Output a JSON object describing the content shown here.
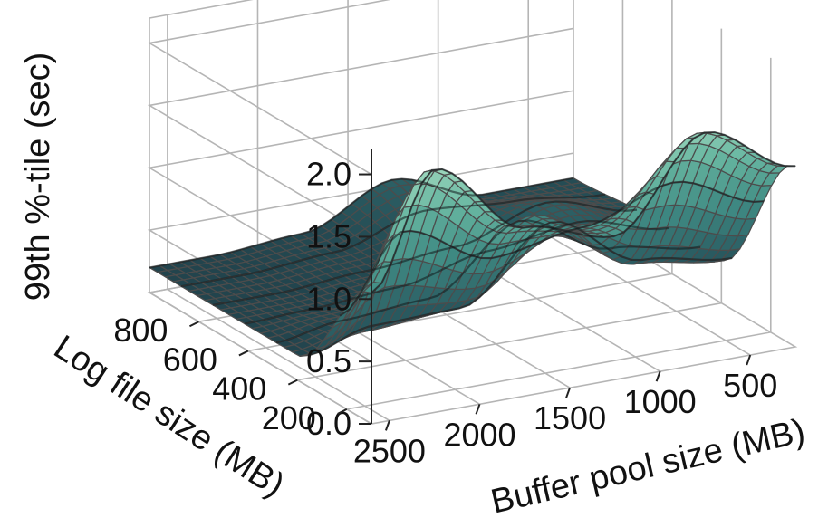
{
  "chart_data": {
    "type": "surface3d",
    "title": "",
    "zlabel": "99th %-tile (sec)",
    "xlabel": "Log file size (MB)",
    "ylabel": "Buffer pool size (MB)",
    "z_ticks": [
      "0.0",
      "0.5",
      "1.0",
      "1.5",
      "2.0"
    ],
    "x_ticks": [
      "200",
      "400",
      "600",
      "800"
    ],
    "y_ticks": [
      "500",
      "1000",
      "1500",
      "2000",
      "2500"
    ],
    "x_range": [
      100,
      1000
    ],
    "y_range": [
      250,
      2600
    ],
    "z_range": [
      0,
      2.2
    ],
    "grid": true,
    "colormap": [
      "#1d3540",
      "#2a5b61",
      "#3f8a83",
      "#66b5a0",
      "#a6ddc2"
    ],
    "surface": {
      "log_file_size_mb": [
        100,
        400,
        700,
        1000
      ],
      "buffer_pool_size_mb": [
        250,
        750,
        1250,
        1750,
        2250,
        2600
      ],
      "p99_sec": [
        [
          1.45,
          1.85,
          1.15,
          1.35,
          1.95,
          1.05
        ],
        [
          0.35,
          0.45,
          0.95,
          0.35,
          0.3,
          0.2
        ],
        [
          0.35,
          0.55,
          0.3,
          0.25,
          0.2,
          0.2
        ],
        [
          0.3,
          0.3,
          0.55,
          0.25,
          0.2,
          0.2
        ]
      ]
    }
  }
}
